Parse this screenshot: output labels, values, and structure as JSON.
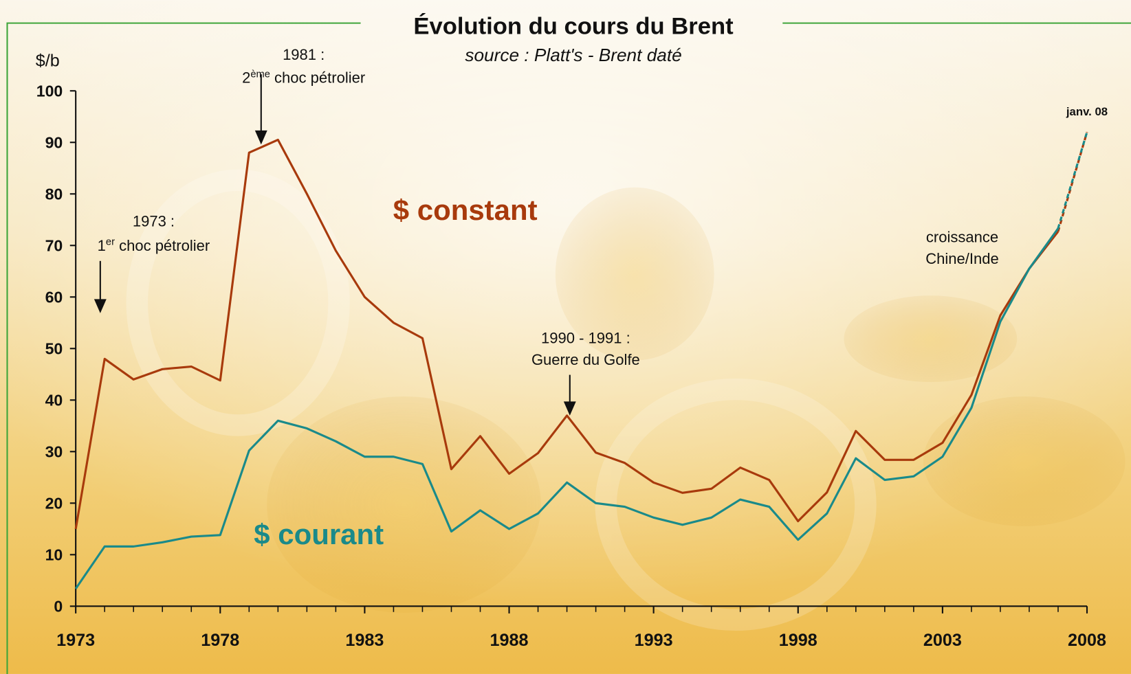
{
  "chart_data": {
    "type": "line",
    "title": "Évolution du cours du Brent",
    "subtitle": "source : Platt's - Brent daté",
    "y_label": "$/b",
    "x": [
      1973,
      1974,
      1975,
      1976,
      1977,
      1978,
      1979,
      1980,
      1981,
      1982,
      1983,
      1984,
      1985,
      1986,
      1987,
      1988,
      1989,
      1990,
      1991,
      1992,
      1993,
      1994,
      1995,
      1996,
      1997,
      1998,
      1999,
      2000,
      2001,
      2002,
      2003,
      2004,
      2005,
      2006,
      2007,
      2008
    ],
    "series": [
      {
        "name": "$ constant",
        "color": "#a83a0c",
        "values": [
          15,
          48,
          44,
          46,
          46.5,
          43.8,
          88,
          90.5,
          80,
          69,
          60,
          55,
          52,
          26.6,
          33,
          25.7,
          29.7,
          37,
          29.8,
          27.8,
          24,
          22,
          22.8,
          26.9,
          24.5,
          16.5,
          22.1,
          34,
          28.4,
          28.4,
          31.7,
          41,
          56.4,
          65.5,
          72.7,
          92
        ]
      },
      {
        "name": "$ courant",
        "color": "#1a8a8a",
        "values": [
          3.4,
          11.6,
          11.6,
          12.4,
          13.5,
          13.8,
          30.2,
          36,
          34.5,
          32,
          29,
          29,
          27.6,
          14.5,
          18.6,
          15,
          18,
          24,
          20,
          19.3,
          17.2,
          15.8,
          17.2,
          20.7,
          19.3,
          12.9,
          18,
          28.7,
          24.5,
          25.2,
          29,
          38.5,
          55.2,
          65.5,
          73.3,
          92
        ]
      }
    ],
    "last_segment_dashed": true,
    "xlim": [
      1973,
      2008
    ],
    "xticks": [
      1973,
      1978,
      1983,
      1988,
      1993,
      1998,
      2003,
      2008
    ],
    "ylim": [
      0,
      100
    ],
    "yticks": [
      0,
      10,
      20,
      30,
      40,
      50,
      60,
      70,
      80,
      90,
      100
    ],
    "annotations": [
      {
        "line1": "1973 :",
        "num": "1",
        "sup": "er",
        "rest": " choc pétrolier"
      },
      {
        "line1": "1981 :",
        "num": "2",
        "sup": "ème",
        "rest": " choc pétrolier"
      },
      {
        "line1": "1990 - 1991 :",
        "line2": "Guerre du Golfe"
      },
      {
        "line1": "croissance",
        "line2": "Chine/Inde"
      },
      {
        "line1": "janv. 08"
      }
    ]
  }
}
